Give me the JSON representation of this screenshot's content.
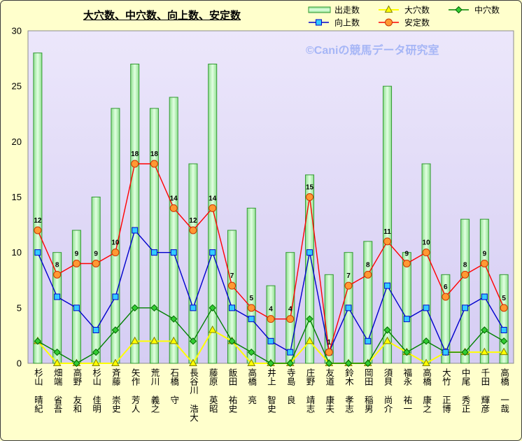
{
  "chart_data": {
    "type": "bar",
    "title": "大穴数、中穴数、向上数、安定数",
    "categories": [
      "杉山 晴紀",
      "畑端 省吾",
      "高野 友和",
      "杉山 佳明",
      "斉藤 崇史",
      "矢作 芳人",
      "荒川 義之",
      "石橋 守",
      "長谷川 浩大",
      "藤原 英昭",
      "飯田 祐史",
      "高橋 亮",
      "井上 智史",
      "寺島 良",
      "庄野 靖志",
      "友道 康夫",
      "鈴木 孝志",
      "岡田 稲男",
      "須貝 尚介",
      "福永 祐一",
      "高橋 康之",
      "大竹 正博",
      "中尾 秀正",
      "千田 輝彦",
      "高橋 一哉"
    ],
    "series": [
      {
        "name": "出走数",
        "type": "bar",
        "color": "#339933",
        "values": [
          28,
          10,
          12,
          15,
          23,
          27,
          23,
          24,
          18,
          27,
          12,
          14,
          7,
          10,
          17,
          8,
          10,
          11,
          25,
          10,
          18,
          8,
          13,
          13,
          8
        ]
      },
      {
        "name": "大穴数",
        "type": "line",
        "marker": "triangle",
        "color": "#ffff00",
        "marker_fill": "#ffff00",
        "marker_stroke": "#808000",
        "values": [
          2,
          0,
          0,
          0,
          0,
          2,
          2,
          2,
          0,
          3,
          2,
          0,
          0,
          0,
          2,
          0,
          0,
          0,
          2,
          1,
          0,
          1,
          1,
          1,
          1
        ]
      },
      {
        "name": "中穴数",
        "type": "line",
        "marker": "diamond",
        "color": "#008000",
        "marker_fill": "#33cc33",
        "marker_stroke": "#006600",
        "values": [
          2,
          1,
          0,
          1,
          3,
          5,
          5,
          4,
          2,
          5,
          2,
          1,
          0,
          0,
          4,
          0,
          0,
          0,
          3,
          1,
          2,
          1,
          1,
          3,
          2
        ]
      },
      {
        "name": "向上数",
        "type": "line",
        "marker": "square",
        "color": "#0000cc",
        "marker_fill": "#33ccff",
        "marker_stroke": "#0000cc",
        "values": [
          10,
          6,
          5,
          3,
          6,
          12,
          10,
          10,
          5,
          10,
          5,
          4,
          2,
          1,
          10,
          1,
          5,
          2,
          7,
          4,
          5,
          1,
          5,
          6,
          3
        ]
      },
      {
        "name": "安定数",
        "type": "line",
        "marker": "circle",
        "color": "#ff0000",
        "marker_fill": "#ff9933",
        "marker_stroke": "#cc3300",
        "data_labels": true,
        "values": [
          12,
          8,
          9,
          9,
          10,
          18,
          18,
          14,
          12,
          14,
          7,
          5,
          4,
          4,
          15,
          1,
          7,
          8,
          11,
          9,
          10,
          6,
          8,
          9,
          5
        ]
      }
    ],
    "ylim": [
      0,
      30
    ],
    "yticks": [
      0,
      5,
      10,
      15,
      20,
      25,
      30
    ],
    "legend": "top-right",
    "grid": false
  },
  "watermark": "©Caniの競馬データ研究室"
}
